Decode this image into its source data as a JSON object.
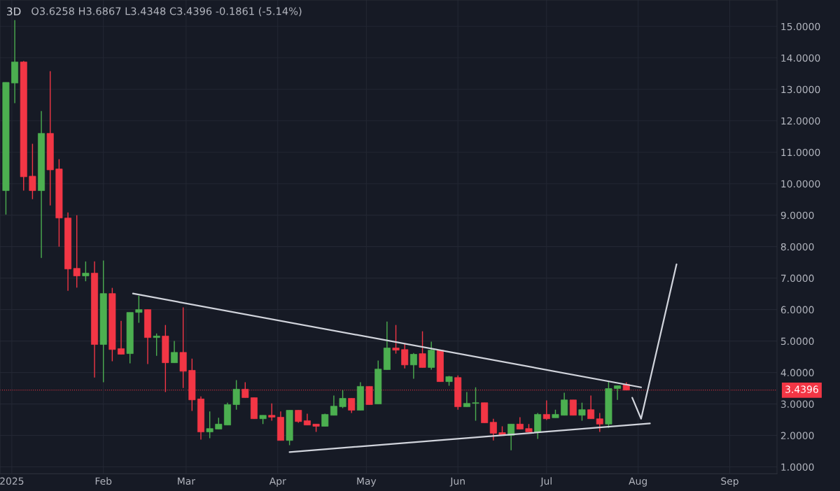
{
  "chart_data": {
    "type": "candlestick",
    "title": "3D",
    "annotations": [
      "O3.6258 H3.6867 L3.4348 C3.4396 -0.1861 (-5.14%)"
    ],
    "x": [
      "2024-12-30",
      "2025-01-02",
      "2025-01-05",
      "2025-01-08",
      "2025-01-11",
      "2025-01-14",
      "2025-01-17",
      "2025-01-20",
      "2025-01-23",
      "2025-01-26",
      "2025-01-29",
      "2025-02-01",
      "2025-02-04",
      "2025-02-07",
      "2025-02-10",
      "2025-02-13",
      "2025-02-16",
      "2025-02-19",
      "2025-02-22",
      "2025-02-25",
      "2025-02-28",
      "2025-03-03",
      "2025-03-06",
      "2025-03-09",
      "2025-03-12",
      "2025-03-15",
      "2025-03-18",
      "2025-03-21",
      "2025-03-24",
      "2025-03-27",
      "2025-03-30",
      "2025-04-02",
      "2025-04-05",
      "2025-04-08",
      "2025-04-11",
      "2025-04-14",
      "2025-04-17",
      "2025-04-20",
      "2025-04-23",
      "2025-04-26",
      "2025-04-29",
      "2025-05-02",
      "2025-05-05",
      "2025-05-08",
      "2025-05-11",
      "2025-05-14",
      "2025-05-17",
      "2025-05-20",
      "2025-05-23",
      "2025-05-26",
      "2025-05-29",
      "2025-06-01",
      "2025-06-04",
      "2025-06-07",
      "2025-06-10",
      "2025-06-13",
      "2025-06-16",
      "2025-06-19",
      "2025-06-22",
      "2025-06-25",
      "2025-06-28",
      "2025-07-01",
      "2025-07-04",
      "2025-07-07",
      "2025-07-10",
      "2025-07-13",
      "2025-07-16",
      "2025-07-19",
      "2025-07-22",
      "2025-07-25",
      "2025-07-28"
    ],
    "ohlc": [
      [
        9.78,
        13.22,
        9.02,
        13.22
      ],
      [
        13.2,
        15.2,
        12.56,
        13.87
      ],
      [
        13.87,
        13.9,
        9.78,
        10.22
      ],
      [
        10.24,
        11.27,
        9.51,
        9.78
      ],
      [
        9.78,
        12.31,
        7.64,
        11.6
      ],
      [
        11.6,
        13.58,
        9.31,
        10.44
      ],
      [
        10.47,
        10.78,
        8.0,
        8.91
      ],
      [
        8.91,
        9.09,
        6.6,
        7.29
      ],
      [
        7.31,
        9.0,
        6.7,
        7.07
      ],
      [
        7.07,
        7.53,
        6.9,
        7.16
      ],
      [
        7.16,
        7.53,
        3.84,
        4.89
      ],
      [
        4.89,
        7.56,
        3.69,
        6.51
      ],
      [
        6.51,
        6.69,
        4.36,
        4.73
      ],
      [
        4.76,
        5.64,
        4.58,
        4.58
      ],
      [
        4.6,
        5.91,
        4.29,
        5.91
      ],
      [
        5.91,
        6.44,
        5.58,
        6.0
      ],
      [
        6.0,
        6.0,
        4.27,
        5.11
      ],
      [
        5.11,
        5.24,
        4.53,
        5.16
      ],
      [
        5.16,
        5.51,
        3.38,
        4.31
      ],
      [
        4.31,
        5.0,
        4.31,
        4.64
      ],
      [
        4.64,
        6.07,
        3.51,
        4.04
      ],
      [
        4.07,
        4.44,
        2.78,
        3.13
      ],
      [
        3.16,
        3.24,
        1.87,
        2.11
      ],
      [
        2.11,
        2.76,
        1.91,
        2.22
      ],
      [
        2.2,
        2.56,
        2.2,
        2.36
      ],
      [
        2.33,
        3.04,
        2.33,
        2.98
      ],
      [
        2.98,
        3.76,
        2.82,
        3.47
      ],
      [
        3.47,
        3.69,
        3.2,
        3.2
      ],
      [
        3.2,
        3.2,
        2.53,
        2.53
      ],
      [
        2.53,
        2.64,
        2.36,
        2.64
      ],
      [
        2.64,
        3.02,
        2.47,
        2.58
      ],
      [
        2.58,
        2.76,
        1.84,
        1.84
      ],
      [
        1.84,
        2.8,
        1.69,
        2.8
      ],
      [
        2.8,
        2.8,
        2.4,
        2.44
      ],
      [
        2.47,
        2.69,
        2.33,
        2.33
      ],
      [
        2.36,
        2.36,
        2.11,
        2.29
      ],
      [
        2.29,
        2.69,
        2.29,
        2.67
      ],
      [
        2.64,
        3.27,
        2.64,
        2.93
      ],
      [
        2.91,
        3.44,
        2.87,
        3.18
      ],
      [
        3.18,
        3.18,
        2.71,
        2.8
      ],
      [
        2.8,
        3.69,
        2.8,
        3.56
      ],
      [
        3.56,
        3.56,
        2.98,
        2.98
      ],
      [
        3.0,
        4.38,
        3.0,
        4.11
      ],
      [
        4.09,
        5.62,
        4.09,
        4.78
      ],
      [
        4.78,
        5.51,
        4.6,
        4.71
      ],
      [
        4.73,
        4.93,
        4.13,
        4.24
      ],
      [
        4.24,
        4.62,
        3.8,
        4.58
      ],
      [
        4.6,
        5.31,
        4.16,
        4.16
      ],
      [
        4.16,
        4.98,
        4.09,
        4.71
      ],
      [
        4.71,
        4.71,
        3.71,
        3.71
      ],
      [
        3.71,
        3.89,
        3.58,
        3.87
      ],
      [
        3.84,
        3.91,
        2.82,
        2.91
      ],
      [
        2.91,
        3.38,
        2.91,
        3.02
      ],
      [
        3.02,
        3.53,
        2.47,
        3.04
      ],
      [
        3.04,
        3.04,
        2.4,
        2.4
      ],
      [
        2.42,
        2.53,
        1.84,
        2.07
      ],
      [
        2.09,
        2.29,
        2.0,
        2.0
      ],
      [
        2.0,
        2.36,
        1.53,
        2.36
      ],
      [
        2.36,
        2.58,
        2.2,
        2.2
      ],
      [
        2.22,
        2.36,
        2.11,
        2.11
      ],
      [
        2.11,
        2.71,
        1.89,
        2.67
      ],
      [
        2.67,
        3.11,
        2.49,
        2.53
      ],
      [
        2.56,
        2.82,
        2.56,
        2.67
      ],
      [
        2.64,
        3.36,
        2.64,
        3.13
      ],
      [
        3.13,
        3.13,
        2.64,
        2.64
      ],
      [
        2.64,
        3.04,
        2.47,
        2.82
      ],
      [
        2.82,
        3.27,
        2.53,
        2.53
      ],
      [
        2.53,
        2.71,
        2.11,
        2.36
      ],
      [
        2.36,
        3.71,
        2.24,
        3.49
      ],
      [
        3.49,
        3.58,
        3.13,
        3.58
      ],
      [
        3.6258,
        3.6867,
        3.4348,
        3.4396
      ]
    ],
    "colors": [
      "#4caf50",
      "#4caf50",
      "#f23645",
      "#f23645",
      "#4caf50",
      "#f23645",
      "#f23645",
      "#f23645",
      "#f23645",
      "#4caf50",
      "#f23645",
      "#4caf50",
      "#f23645",
      "#f23645",
      "#4caf50",
      "#4caf50",
      "#f23645",
      "#4caf50",
      "#f23645",
      "#4caf50",
      "#f23645",
      "#f23645",
      "#f23645",
      "#4caf50",
      "#4caf50",
      "#4caf50",
      "#4caf50",
      "#f23645",
      "#f23645",
      "#4caf50",
      "#f23645",
      "#f23645",
      "#4caf50",
      "#f23645",
      "#f23645",
      "#f23645",
      "#4caf50",
      "#4caf50",
      "#4caf50",
      "#f23645",
      "#4caf50",
      "#f23645",
      "#4caf50",
      "#4caf50",
      "#f23645",
      "#f23645",
      "#4caf50",
      "#f23645",
      "#4caf50",
      "#f23645",
      "#4caf50",
      "#f23645",
      "#4caf50",
      "#4caf50",
      "#f23645",
      "#f23645",
      "#f23645",
      "#4caf50",
      "#f23645",
      "#f23645",
      "#4caf50",
      "#f23645",
      "#4caf50",
      "#4caf50",
      "#f23645",
      "#4caf50",
      "#f23645",
      "#f23645",
      "#4caf50",
      "#4caf50",
      "#f23645"
    ],
    "series": [
      {
        "type": "line",
        "color": "#d1d4dc",
        "x": [
          "2025-02-11",
          "2025-08-02"
        ],
        "values": [
          6.51,
          3.53
        ]
      },
      {
        "type": "line",
        "color": "#d1d4dc",
        "x": [
          "2025-04-05",
          "2025-08-05"
        ],
        "values": [
          1.47,
          2.38
        ]
      },
      {
        "type": "line",
        "color": "#d1d4dc",
        "x": [
          "2025-07-30",
          "2025-08-02",
          "2025-08-14"
        ],
        "values": [
          3.2,
          2.53,
          7.44
        ]
      }
    ],
    "ref_lines": [
      {
        "axis": "y",
        "value": 3.4396,
        "label": "3.4396",
        "color": "#f23645",
        "line_style": "dotted"
      }
    ],
    "xlim": [
      "2024-12-28",
      "2025-09-17"
    ],
    "xticks": [
      {
        "value": "2025-01-01",
        "label": "2025"
      },
      {
        "value": "2025-02-01",
        "label": "Feb"
      },
      {
        "value": "2025-03-01",
        "label": "Mar"
      },
      {
        "value": "2025-04-01",
        "label": "Apr"
      },
      {
        "value": "2025-05-01",
        "label": "May"
      },
      {
        "value": "2025-06-01",
        "label": "Jun"
      },
      {
        "value": "2025-07-01",
        "label": "Jul"
      },
      {
        "value": "2025-08-01",
        "label": "Aug"
      },
      {
        "value": "2025-09-01",
        "label": "Sep"
      }
    ],
    "ylim": [
      0.78,
      15.84
    ],
    "yticks": [
      {
        "value": 1,
        "label": "1.0000"
      },
      {
        "value": 2,
        "label": "2.0000"
      },
      {
        "value": 3,
        "label": "3.0000"
      },
      {
        "value": 4,
        "label": "4.0000"
      },
      {
        "value": 5,
        "label": "5.0000"
      },
      {
        "value": 6,
        "label": "6.0000"
      },
      {
        "value": 7,
        "label": "7.0000"
      },
      {
        "value": 8,
        "label": "8.0000"
      },
      {
        "value": 9,
        "label": "9.0000"
      },
      {
        "value": 10,
        "label": "10.0000"
      },
      {
        "value": 11,
        "label": "11.0000"
      },
      {
        "value": 12,
        "label": "12.0000"
      },
      {
        "value": 13,
        "label": "13.0000"
      },
      {
        "value": 14,
        "label": "14.0000"
      },
      {
        "value": 15,
        "label": "15.0000"
      }
    ],
    "grid": true
  }
}
